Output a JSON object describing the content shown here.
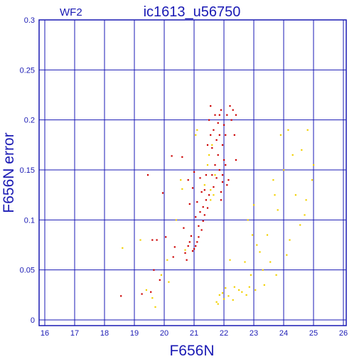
{
  "chart_data": {
    "type": "scatter",
    "panel_label": "WF2",
    "title": "ic1613_u56750",
    "xlabel": "F656N",
    "ylabel": "F656N error",
    "xlim": [
      16,
      26
    ],
    "ylim": [
      0,
      0.3
    ],
    "x_ticks": [
      "16",
      "17",
      "18",
      "19",
      "20",
      "21",
      "22",
      "23",
      "24",
      "25",
      "26"
    ],
    "y_ticks": [
      "0",
      "0.05",
      "0.1",
      "0.15",
      "0.2",
      "0.25",
      "0.3"
    ],
    "grid": true,
    "colors": {
      "axis": "#1a1ab4",
      "grid": "#1a1ab4",
      "red": "#cc0000",
      "yellow": "#f2d000"
    },
    "series": [
      {
        "color_key": "red",
        "points": [
          [
            18.55,
            0.024
          ],
          [
            19.25,
            0.026
          ],
          [
            19.55,
            0.028
          ],
          [
            19.65,
            0.05
          ],
          [
            19.85,
            0.04
          ],
          [
            19.45,
            0.145
          ],
          [
            19.6,
            0.08
          ],
          [
            19.75,
            0.08
          ],
          [
            19.95,
            0.127
          ],
          [
            20.05,
            0.083
          ],
          [
            20.25,
            0.164
          ],
          [
            20.3,
            0.063
          ],
          [
            20.35,
            0.073
          ],
          [
            20.6,
            0.163
          ],
          [
            20.65,
            0.092
          ],
          [
            20.7,
            0.067
          ],
          [
            20.75,
            0.06
          ],
          [
            20.8,
            0.14
          ],
          [
            20.8,
            0.074
          ],
          [
            20.85,
            0.078
          ],
          [
            20.9,
            0.084
          ],
          [
            20.85,
            0.116
          ],
          [
            20.95,
            0.132
          ],
          [
            20.95,
            0.069
          ],
          [
            21.0,
            0.071
          ],
          [
            21.05,
            0.074
          ],
          [
            21.0,
            0.148
          ],
          [
            21.05,
            0.103
          ],
          [
            21.1,
            0.078
          ],
          [
            21.1,
            0.118
          ],
          [
            21.15,
            0.083
          ],
          [
            21.15,
            0.094
          ],
          [
            21.2,
            0.108
          ],
          [
            21.2,
            0.142
          ],
          [
            21.25,
            0.09
          ],
          [
            21.25,
            0.128
          ],
          [
            21.3,
            0.099
          ],
          [
            21.3,
            0.113
          ],
          [
            21.35,
            0.105
          ],
          [
            21.35,
            0.13
          ],
          [
            21.4,
            0.12
          ],
          [
            21.4,
            0.145
          ],
          [
            21.45,
            0.112
          ],
          [
            21.45,
            0.175
          ],
          [
            21.5,
            0.125
          ],
          [
            21.5,
            0.2
          ],
          [
            21.55,
            0.185
          ],
          [
            21.55,
            0.214
          ],
          [
            21.6,
            0.145
          ],
          [
            21.6,
            0.172
          ],
          [
            21.65,
            0.133
          ],
          [
            21.65,
            0.19
          ],
          [
            21.7,
            0.155
          ],
          [
            21.7,
            0.205
          ],
          [
            21.75,
            0.142
          ],
          [
            21.75,
            0.18
          ],
          [
            21.8,
            0.165
          ],
          [
            21.8,
            0.197
          ],
          [
            21.85,
            0.15
          ],
          [
            21.85,
            0.185
          ],
          [
            21.9,
            0.128
          ],
          [
            21.9,
            0.21
          ],
          [
            21.95,
            0.145
          ],
          [
            21.95,
            0.175
          ],
          [
            22.0,
            0.16
          ],
          [
            22.0,
            0.195
          ],
          [
            22.05,
            0.155
          ],
          [
            22.05,
            0.185
          ],
          [
            22.1,
            0.135
          ],
          [
            22.1,
            0.205
          ],
          [
            22.15,
            0.14
          ],
          [
            22.2,
            0.214
          ],
          [
            22.25,
            0.2
          ],
          [
            22.3,
            0.21
          ],
          [
            22.35,
            0.185
          ],
          [
            22.4,
            0.205
          ],
          [
            22.4,
            0.16
          ],
          [
            21.9,
            0.12
          ],
          [
            21.95,
            0.138
          ],
          [
            21.85,
            0.205
          ]
        ]
      },
      {
        "color_key": "yellow",
        "points": [
          [
            18.6,
            0.072
          ],
          [
            19.2,
            0.08
          ],
          [
            19.4,
            0.03
          ],
          [
            19.6,
            0.022
          ],
          [
            19.7,
            0.013
          ],
          [
            19.9,
            0.045
          ],
          [
            20.1,
            0.06
          ],
          [
            20.15,
            0.038
          ],
          [
            20.4,
            0.1
          ],
          [
            20.55,
            0.14
          ],
          [
            20.6,
            0.131
          ],
          [
            20.7,
            0.07
          ],
          [
            21.05,
            0.185
          ],
          [
            21.1,
            0.19
          ],
          [
            21.45,
            0.155
          ],
          [
            21.5,
            0.165
          ],
          [
            21.55,
            0.13
          ],
          [
            21.6,
            0.175
          ],
          [
            21.65,
            0.125
          ],
          [
            21.7,
            0.145
          ],
          [
            21.75,
            0.018
          ],
          [
            21.8,
            0.016
          ],
          [
            21.85,
            0.025
          ],
          [
            21.95,
            0.027
          ],
          [
            22.0,
            0.021
          ],
          [
            22.05,
            0.032
          ],
          [
            22.15,
            0.024
          ],
          [
            22.2,
            0.06
          ],
          [
            22.3,
            0.02
          ],
          [
            22.35,
            0.033
          ],
          [
            22.5,
            0.03
          ],
          [
            22.6,
            0.028
          ],
          [
            22.7,
            0.058
          ],
          [
            22.75,
            0.025
          ],
          [
            22.8,
            0.1
          ],
          [
            22.85,
            0.033
          ],
          [
            22.95,
            0.085
          ],
          [
            23.0,
            0.115
          ],
          [
            23.1,
            0.075
          ],
          [
            23.2,
            0.068
          ],
          [
            23.3,
            0.05
          ],
          [
            23.35,
            0.035
          ],
          [
            23.45,
            0.085
          ],
          [
            23.55,
            0.058
          ],
          [
            23.65,
            0.14
          ],
          [
            23.7,
            0.125
          ],
          [
            23.75,
            0.045
          ],
          [
            23.8,
            0.11
          ],
          [
            23.9,
            0.185
          ],
          [
            24.0,
            0.15
          ],
          [
            24.1,
            0.065
          ],
          [
            24.2,
            0.08
          ],
          [
            24.3,
            0.165
          ],
          [
            24.4,
            0.125
          ],
          [
            24.55,
            0.095
          ],
          [
            24.6,
            0.17
          ],
          [
            24.7,
            0.105
          ],
          [
            24.75,
            0.12
          ],
          [
            24.8,
            0.19
          ],
          [
            24.95,
            0.14
          ],
          [
            25.0,
            0.155
          ],
          [
            24.15,
            0.19
          ],
          [
            22.9,
            0.045
          ],
          [
            23.05,
            0.03
          ],
          [
            21.55,
            0.12
          ],
          [
            21.35,
            0.135
          ]
        ]
      }
    ]
  }
}
